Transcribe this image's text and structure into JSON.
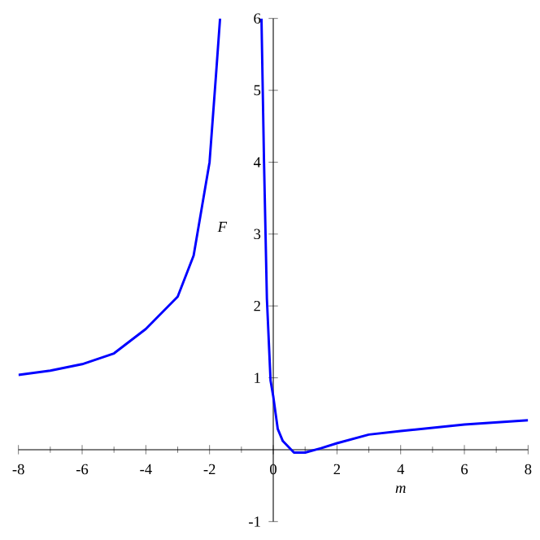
{
  "chart_data": {
    "type": "line",
    "xlabel": "m",
    "ylabel": "F",
    "xlim": [
      -8,
      8
    ],
    "ylim": [
      -1,
      6
    ],
    "xticks": [
      -8,
      -6,
      -4,
      -2,
      0,
      2,
      4,
      6,
      8
    ],
    "yticks": [
      -1,
      1,
      2,
      3,
      4,
      5,
      6
    ],
    "grid": false,
    "marker": "none",
    "line_style": "solid",
    "series": [
      {
        "color": "#0000ff",
        "x": [
          -8,
          -7,
          -6,
          -5,
          -4,
          -3,
          -2.5,
          -2,
          -1.8,
          -1.67
        ],
        "values": [
          1.04,
          1.1,
          1.19,
          1.34,
          1.68,
          2.13,
          2.7,
          4.0,
          5.2,
          6
        ]
      },
      {
        "color": "#0000ff",
        "x": [
          -0.37,
          -0.29,
          -0.2,
          -0.085,
          0,
          0.14,
          0.3,
          0.65,
          1.0,
          1.5,
          2,
          3,
          4,
          6,
          8
        ],
        "values": [
          6,
          4.0,
          2.1,
          0.96,
          0.74,
          0.29,
          0.12,
          -0.04,
          -0.04,
          0.02,
          0.09,
          0.21,
          0.26,
          0.35,
          0.41
        ]
      }
    ]
  }
}
